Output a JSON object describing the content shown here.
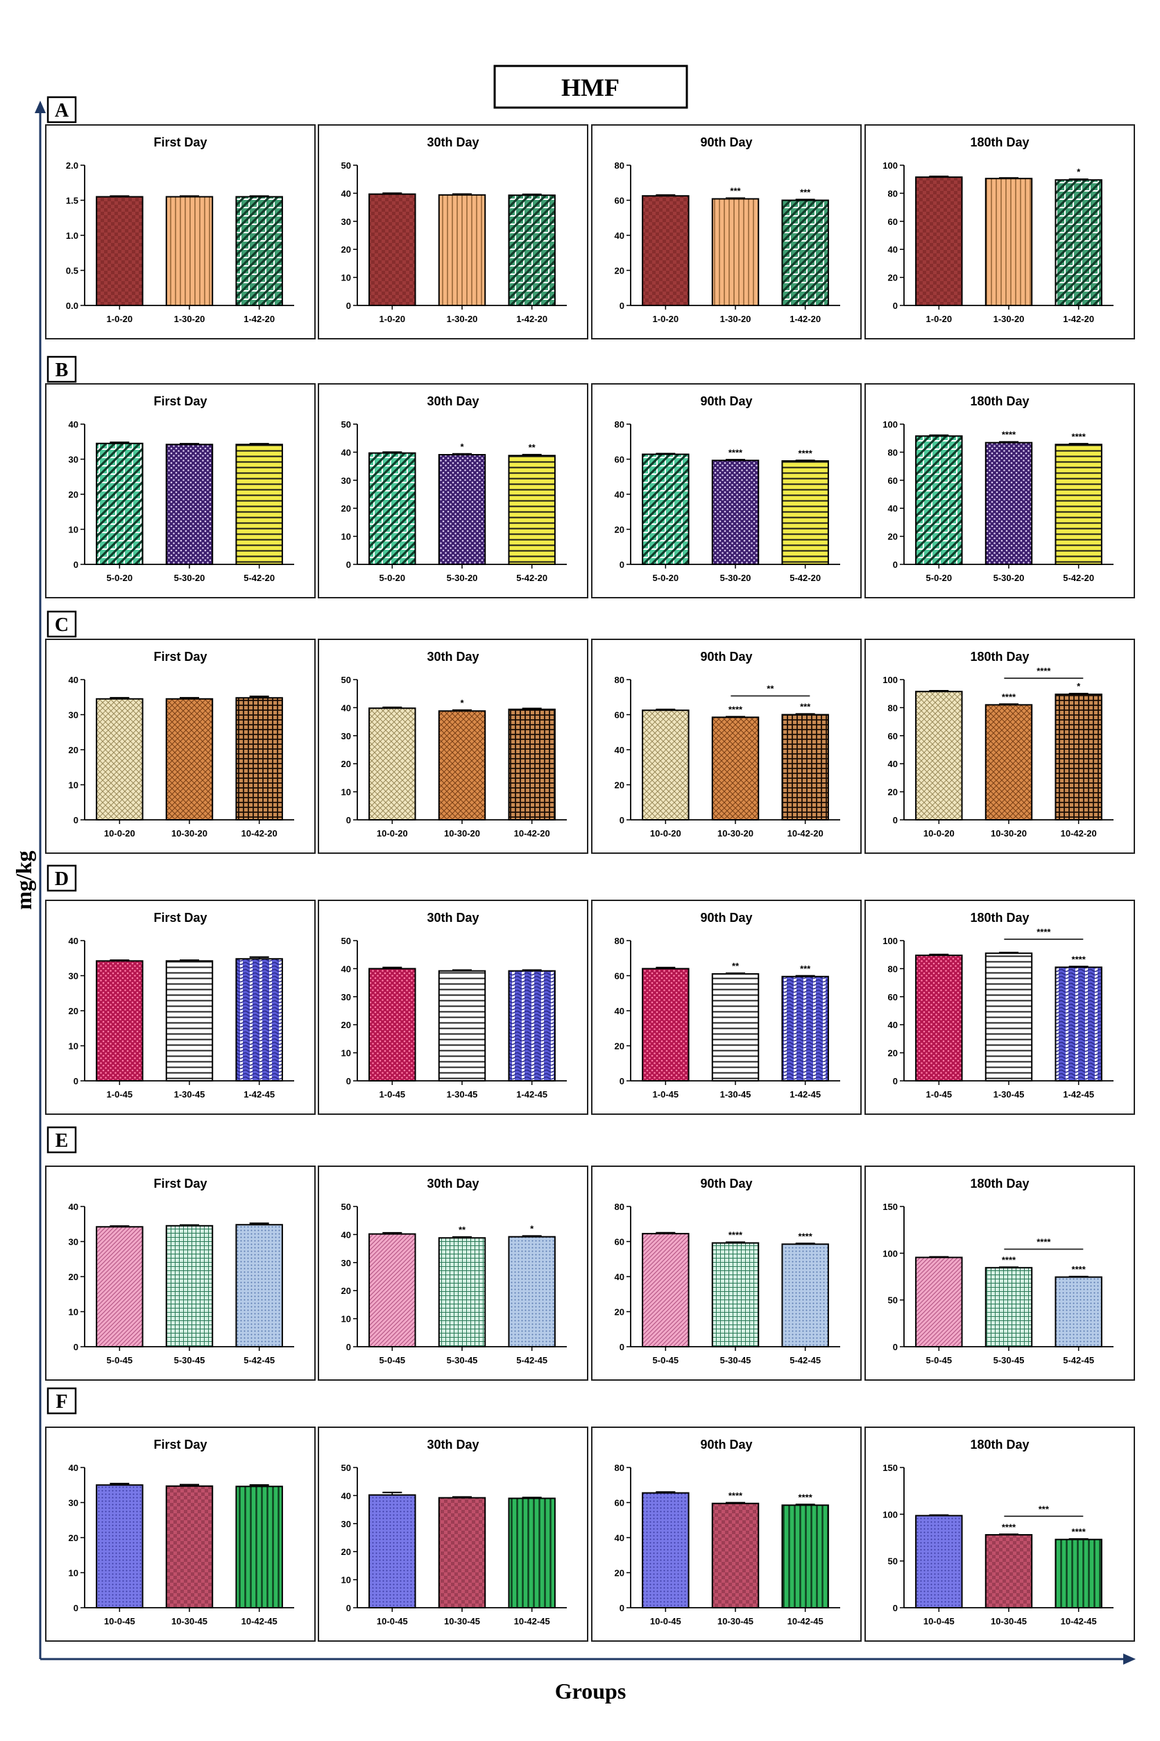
{
  "figure": {
    "title": "HMF",
    "y_axis_label": "mg/kg",
    "x_axis_label": "Groups",
    "axis_color": "#1f3864"
  },
  "patterns": {
    "maroon_checks": {
      "fill": "#9e3a3a",
      "style": "checks",
      "stroke": "#5c1515"
    },
    "orange_vlines": {
      "fill": "#f5b57f",
      "style": "vlines",
      "stroke": "#8a5a2e"
    },
    "green_diag": {
      "fill": "#3e9e72",
      "style": "diag",
      "stroke": "#123d2a"
    },
    "mint_diag": {
      "fill": "#4cc99a",
      "style": "diag",
      "stroke": "#0f3d2a"
    },
    "purple_dots": {
      "fill": "#3d1f6e",
      "style": "dots",
      "stroke": "#d9c8f0"
    },
    "yellow_hlines": {
      "fill": "#f2ec4a",
      "style": "hlines",
      "stroke": "#1a1a1a"
    },
    "beige_checks": {
      "fill": "#f0e6c0",
      "style": "diag_cross",
      "stroke": "#9a8a5a"
    },
    "copper_diag": {
      "fill": "#d98a4a",
      "style": "diag_cross",
      "stroke": "#7a3f15"
    },
    "brown_grid": {
      "fill": "#c98a52",
      "style": "grid_dark",
      "stroke": "#1a0d05"
    },
    "crimson_dots": {
      "fill": "#b5164f",
      "style": "dots",
      "stroke": "#ff7aa5"
    },
    "white_hlines": {
      "fill": "#ffffff",
      "style": "hlines",
      "stroke": "#222222"
    },
    "blue_wave": {
      "fill": "#5a5ad8",
      "style": "waves",
      "stroke": "#2a2a8a"
    },
    "pink_diag": {
      "fill": "#f2a8c8",
      "style": "diag_fine",
      "stroke": "#b05080"
    },
    "teal_grid": {
      "fill": "#d6f2e4",
      "style": "grid_fine",
      "stroke": "#2a7a58"
    },
    "lightblue_dots": {
      "fill": "#b5cbe8",
      "style": "dots_fine",
      "stroke": "#5a7ab0"
    },
    "periwinkle_dots": {
      "fill": "#7878e8",
      "style": "dots_fine",
      "stroke": "#3a3aa0"
    },
    "rose_checks": {
      "fill": "#c0506a",
      "style": "checks",
      "stroke": "#5a1a2a"
    },
    "green_vlines": {
      "fill": "#2eb85c",
      "style": "vlines_bold",
      "stroke": "#0f4020"
    }
  },
  "chart_data": [
    {
      "row": "A",
      "title": "First Day",
      "type": "bar",
      "categories": [
        "1-0-20",
        "1-30-20",
        "1-42-20"
      ],
      "values": [
        1.55,
        1.55,
        1.55
      ],
      "errors": [
        0.01,
        0.01,
        0.01
      ],
      "ylim": [
        0,
        2.0
      ],
      "yticks": [
        "0.0",
        "0.5",
        "1.0",
        "1.5",
        "2.0"
      ],
      "patterns": [
        "maroon_checks",
        "orange_vlines",
        "green_diag"
      ],
      "sig": [
        "",
        "",
        ""
      ],
      "bracket": null
    },
    {
      "row": "A",
      "title": "30th Day",
      "type": "bar",
      "categories": [
        "1-0-20",
        "1-30-20",
        "1-42-20"
      ],
      "values": [
        39.7,
        39.4,
        39.3
      ],
      "errors": [
        0.3,
        0.3,
        0.3
      ],
      "ylim": [
        0,
        50
      ],
      "yticks": [
        "0",
        "10",
        "20",
        "30",
        "40",
        "50"
      ],
      "patterns": [
        "maroon_checks",
        "orange_vlines",
        "green_diag"
      ],
      "sig": [
        "",
        "",
        ""
      ],
      "bracket": null
    },
    {
      "row": "A",
      "title": "90th Day",
      "type": "bar",
      "categories": [
        "1-0-20",
        "1-30-20",
        "1-42-20"
      ],
      "values": [
        62.5,
        60.8,
        60.0
      ],
      "errors": [
        0.5,
        0.4,
        0.4
      ],
      "ylim": [
        0,
        80
      ],
      "yticks": [
        "0",
        "20",
        "40",
        "60",
        "80"
      ],
      "patterns": [
        "maroon_checks",
        "orange_vlines",
        "green_diag"
      ],
      "sig": [
        "",
        "***",
        "***"
      ],
      "bracket": null
    },
    {
      "row": "A",
      "title": "180th Day",
      "type": "bar",
      "categories": [
        "1-0-20",
        "1-30-20",
        "1-42-20"
      ],
      "values": [
        91.5,
        90.5,
        89.5
      ],
      "errors": [
        0.5,
        0.4,
        0.5
      ],
      "ylim": [
        0,
        100
      ],
      "yticks": [
        "0",
        "20",
        "40",
        "60",
        "80",
        "100"
      ],
      "patterns": [
        "maroon_checks",
        "orange_vlines",
        "green_diag"
      ],
      "sig": [
        "",
        "",
        "*"
      ],
      "bracket": null
    },
    {
      "row": "B",
      "title": "First Day",
      "type": "bar",
      "categories": [
        "5-0-20",
        "5-30-20",
        "5-42-20"
      ],
      "values": [
        34.5,
        34.2,
        34.2
      ],
      "errors": [
        0.3,
        0.2,
        0.2
      ],
      "ylim": [
        0,
        40
      ],
      "yticks": [
        "0",
        "10",
        "20",
        "30",
        "40"
      ],
      "patterns": [
        "mint_diag",
        "purple_dots",
        "yellow_hlines"
      ],
      "sig": [
        "",
        "",
        ""
      ],
      "bracket": null
    },
    {
      "row": "B",
      "title": "30th Day",
      "type": "bar",
      "categories": [
        "5-0-20",
        "5-30-20",
        "5-42-20"
      ],
      "values": [
        39.7,
        39.1,
        38.8
      ],
      "errors": [
        0.3,
        0.3,
        0.3
      ],
      "ylim": [
        0,
        50
      ],
      "yticks": [
        "0",
        "10",
        "20",
        "30",
        "40",
        "50"
      ],
      "patterns": [
        "mint_diag",
        "purple_dots",
        "yellow_hlines"
      ],
      "sig": [
        "",
        "*",
        "**"
      ],
      "bracket": null
    },
    {
      "row": "B",
      "title": "90th Day",
      "type": "bar",
      "categories": [
        "5-0-20",
        "5-30-20",
        "5-42-20"
      ],
      "values": [
        62.8,
        59.3,
        59.0
      ],
      "errors": [
        0.4,
        0.4,
        0.3
      ],
      "ylim": [
        0,
        80
      ],
      "yticks": [
        "0",
        "20",
        "40",
        "60",
        "80"
      ],
      "patterns": [
        "mint_diag",
        "purple_dots",
        "yellow_hlines"
      ],
      "sig": [
        "",
        "****",
        "****"
      ],
      "bracket": null
    },
    {
      "row": "B",
      "title": "180th Day",
      "type": "bar",
      "categories": [
        "5-0-20",
        "5-30-20",
        "5-42-20"
      ],
      "values": [
        91.5,
        86.8,
        85.5
      ],
      "errors": [
        0.6,
        0.5,
        0.5
      ],
      "ylim": [
        0,
        100
      ],
      "yticks": [
        "0",
        "20",
        "40",
        "60",
        "80",
        "100"
      ],
      "patterns": [
        "mint_diag",
        "purple_dots",
        "yellow_hlines"
      ],
      "sig": [
        "",
        "****",
        "****"
      ],
      "bracket": null
    },
    {
      "row": "C",
      "title": "First Day",
      "type": "bar",
      "categories": [
        "10-0-20",
        "10-30-20",
        "10-42-20"
      ],
      "values": [
        34.5,
        34.5,
        34.8
      ],
      "errors": [
        0.3,
        0.3,
        0.4
      ],
      "ylim": [
        0,
        40
      ],
      "yticks": [
        "0",
        "10",
        "20",
        "30",
        "40"
      ],
      "patterns": [
        "beige_checks",
        "copper_diag",
        "brown_grid"
      ],
      "sig": [
        "",
        "",
        ""
      ],
      "bracket": null
    },
    {
      "row": "C",
      "title": "30th Day",
      "type": "bar",
      "categories": [
        "10-0-20",
        "10-30-20",
        "10-42-20"
      ],
      "values": [
        39.8,
        38.8,
        39.4
      ],
      "errors": [
        0.3,
        0.3,
        0.3
      ],
      "ylim": [
        0,
        50
      ],
      "yticks": [
        "0",
        "10",
        "20",
        "30",
        "40",
        "50"
      ],
      "patterns": [
        "beige_checks",
        "copper_diag",
        "brown_grid"
      ],
      "sig": [
        "",
        "*",
        ""
      ],
      "bracket": null
    },
    {
      "row": "C",
      "title": "90th Day",
      "type": "bar",
      "categories": [
        "10-0-20",
        "10-30-20",
        "10-42-20"
      ],
      "values": [
        62.5,
        58.5,
        60.0
      ],
      "errors": [
        0.5,
        0.3,
        0.4
      ],
      "ylim": [
        0,
        80
      ],
      "yticks": [
        "0",
        "20",
        "40",
        "60",
        "80"
      ],
      "patterns": [
        "beige_checks",
        "copper_diag",
        "brown_grid"
      ],
      "sig": [
        "",
        "****",
        "***"
      ],
      "bracket": {
        "from": 1,
        "to": 2,
        "label": "**"
      }
    },
    {
      "row": "C",
      "title": "180th Day",
      "type": "bar",
      "categories": [
        "10-0-20",
        "10-30-20",
        "10-42-20"
      ],
      "values": [
        91.5,
        82.0,
        89.5
      ],
      "errors": [
        0.5,
        0.5,
        0.5
      ],
      "ylim": [
        0,
        100
      ],
      "yticks": [
        "0",
        "20",
        "40",
        "60",
        "80",
        "100"
      ],
      "patterns": [
        "beige_checks",
        "copper_diag",
        "brown_grid"
      ],
      "sig": [
        "",
        "****",
        "*"
      ],
      "bracket": {
        "from": 1,
        "to": 2,
        "label": "****"
      }
    },
    {
      "row": "D",
      "title": "First Day",
      "type": "bar",
      "categories": [
        "1-0-45",
        "1-30-45",
        "1-42-45"
      ],
      "values": [
        34.2,
        34.2,
        34.8
      ],
      "errors": [
        0.2,
        0.2,
        0.5
      ],
      "ylim": [
        0,
        40
      ],
      "yticks": [
        "0",
        "10",
        "20",
        "30",
        "40"
      ],
      "patterns": [
        "crimson_dots",
        "white_hlines",
        "blue_wave"
      ],
      "sig": [
        "",
        "",
        ""
      ],
      "bracket": null
    },
    {
      "row": "D",
      "title": "30th Day",
      "type": "bar",
      "categories": [
        "1-0-45",
        "1-30-45",
        "1-42-45"
      ],
      "values": [
        40.0,
        39.2,
        39.2
      ],
      "errors": [
        0.4,
        0.3,
        0.3
      ],
      "ylim": [
        0,
        50
      ],
      "yticks": [
        "0",
        "10",
        "20",
        "30",
        "40",
        "50"
      ],
      "patterns": [
        "crimson_dots",
        "white_hlines",
        "blue_wave"
      ],
      "sig": [
        "",
        "",
        ""
      ],
      "bracket": null
    },
    {
      "row": "D",
      "title": "90th Day",
      "type": "bar",
      "categories": [
        "1-0-45",
        "1-30-45",
        "1-42-45"
      ],
      "values": [
        64.0,
        61.0,
        59.5
      ],
      "errors": [
        0.6,
        0.4,
        0.4
      ],
      "ylim": [
        0,
        80
      ],
      "yticks": [
        "0",
        "20",
        "40",
        "60",
        "80"
      ],
      "patterns": [
        "crimson_dots",
        "white_hlines",
        "blue_wave"
      ],
      "sig": [
        "",
        "**",
        "***"
      ],
      "bracket": null
    },
    {
      "row": "D",
      "title": "180th Day",
      "type": "bar",
      "categories": [
        "1-0-45",
        "1-30-45",
        "1-42-45"
      ],
      "values": [
        89.5,
        91.0,
        81.0
      ],
      "errors": [
        0.6,
        0.5,
        0.5
      ],
      "ylim": [
        0,
        100
      ],
      "yticks": [
        "0",
        "20",
        "40",
        "60",
        "80",
        "100"
      ],
      "patterns": [
        "crimson_dots",
        "white_hlines",
        "blue_wave"
      ],
      "sig": [
        "",
        "",
        "****"
      ],
      "bracket": {
        "from": 1,
        "to": 2,
        "label": "****"
      }
    },
    {
      "row": "E",
      "title": "First Day",
      "type": "bar",
      "categories": [
        "5-0-45",
        "5-30-45",
        "5-42-45"
      ],
      "values": [
        34.2,
        34.5,
        34.8
      ],
      "errors": [
        0.2,
        0.2,
        0.4
      ],
      "ylim": [
        0,
        40
      ],
      "yticks": [
        "0",
        "10",
        "20",
        "30",
        "40"
      ],
      "patterns": [
        "pink_diag",
        "teal_grid",
        "lightblue_dots"
      ],
      "sig": [
        "",
        "",
        ""
      ],
      "bracket": null
    },
    {
      "row": "E",
      "title": "30th Day",
      "type": "bar",
      "categories": [
        "5-0-45",
        "5-30-45",
        "5-42-45"
      ],
      "values": [
        40.2,
        38.8,
        39.2
      ],
      "errors": [
        0.4,
        0.3,
        0.3
      ],
      "ylim": [
        0,
        50
      ],
      "yticks": [
        "0",
        "10",
        "20",
        "30",
        "40",
        "50"
      ],
      "patterns": [
        "pink_diag",
        "teal_grid",
        "lightblue_dots"
      ],
      "sig": [
        "",
        "**",
        "*"
      ],
      "bracket": null
    },
    {
      "row": "E",
      "title": "90th Day",
      "type": "bar",
      "categories": [
        "5-0-45",
        "5-30-45",
        "5-42-45"
      ],
      "values": [
        64.5,
        59.2,
        58.5
      ],
      "errors": [
        0.5,
        0.4,
        0.4
      ],
      "ylim": [
        0,
        80
      ],
      "yticks": [
        "0",
        "20",
        "40",
        "60",
        "80"
      ],
      "patterns": [
        "pink_diag",
        "teal_grid",
        "lightblue_dots"
      ],
      "sig": [
        "",
        "****",
        "****"
      ],
      "bracket": null
    },
    {
      "row": "E",
      "title": "180th Day",
      "type": "bar",
      "categories": [
        "5-0-45",
        "5-30-45",
        "5-42-45"
      ],
      "values": [
        95.5,
        84.5,
        74.5
      ],
      "errors": [
        0.6,
        0.5,
        0.5
      ],
      "ylim": [
        0,
        150
      ],
      "yticks": [
        "0",
        "50",
        "100",
        "150"
      ],
      "patterns": [
        "pink_diag",
        "teal_grid",
        "lightblue_dots"
      ],
      "sig": [
        "",
        "****",
        "****"
      ],
      "bracket": {
        "from": 1,
        "to": 2,
        "label": "****"
      }
    },
    {
      "row": "F",
      "title": "First Day",
      "type": "bar",
      "categories": [
        "10-0-45",
        "10-30-45",
        "10-42-45"
      ],
      "values": [
        35.0,
        34.7,
        34.6
      ],
      "errors": [
        0.4,
        0.4,
        0.4
      ],
      "ylim": [
        0,
        40
      ],
      "yticks": [
        "0",
        "10",
        "20",
        "30",
        "40"
      ],
      "patterns": [
        "periwinkle_dots",
        "rose_checks",
        "green_vlines"
      ],
      "sig": [
        "",
        "",
        ""
      ],
      "bracket": null
    },
    {
      "row": "F",
      "title": "30th Day",
      "type": "bar",
      "categories": [
        "10-0-45",
        "10-30-45",
        "10-42-45"
      ],
      "values": [
        40.2,
        39.2,
        39.0
      ],
      "errors": [
        0.9,
        0.3,
        0.3
      ],
      "ylim": [
        0,
        50
      ],
      "yticks": [
        "0",
        "10",
        "20",
        "30",
        "40",
        "50"
      ],
      "patterns": [
        "periwinkle_dots",
        "rose_checks",
        "green_vlines"
      ],
      "sig": [
        "",
        "",
        ""
      ],
      "bracket": null
    },
    {
      "row": "F",
      "title": "90th Day",
      "type": "bar",
      "categories": [
        "10-0-45",
        "10-30-45",
        "10-42-45"
      ],
      "values": [
        65.5,
        59.5,
        58.5
      ],
      "errors": [
        0.5,
        0.4,
        0.4
      ],
      "ylim": [
        0,
        80
      ],
      "yticks": [
        "0",
        "20",
        "40",
        "60",
        "80"
      ],
      "patterns": [
        "periwinkle_dots",
        "rose_checks",
        "green_vlines"
      ],
      "sig": [
        "",
        "****",
        "****"
      ],
      "bracket": null
    },
    {
      "row": "F",
      "title": "180th Day",
      "type": "bar",
      "categories": [
        "10-0-45",
        "10-30-45",
        "10-42-45"
      ],
      "values": [
        98.5,
        78.0,
        73.0
      ],
      "errors": [
        0.6,
        0.5,
        0.5
      ],
      "ylim": [
        0,
        150
      ],
      "yticks": [
        "0",
        "50",
        "100",
        "150"
      ],
      "patterns": [
        "periwinkle_dots",
        "rose_checks",
        "green_vlines"
      ],
      "sig": [
        "",
        "****",
        "****"
      ],
      "bracket": {
        "from": 1,
        "to": 2,
        "label": "***"
      }
    }
  ],
  "rows": [
    "A",
    "B",
    "C",
    "D",
    "E",
    "F"
  ]
}
